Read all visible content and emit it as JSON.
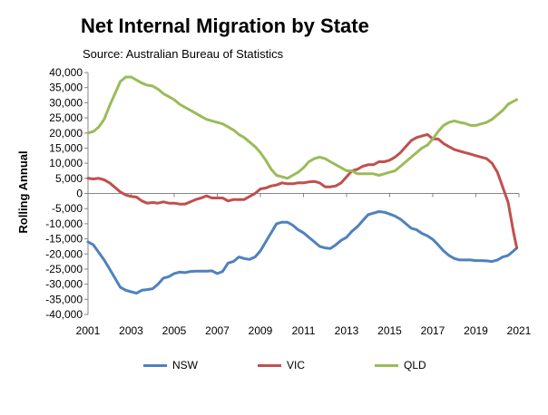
{
  "chart_data": {
    "type": "line",
    "title": "Net Internal Migration by State",
    "subtitle": "Source: Australian Bureau of Statistics",
    "ylabel": "Rolling Annual",
    "xlabel": "",
    "xlim": [
      2001,
      2021
    ],
    "ylim": [
      -40000,
      40000
    ],
    "x_ticks": [
      "2001",
      "2003",
      "2005",
      "2007",
      "2009",
      "2011",
      "2013",
      "2015",
      "2017",
      "2019",
      "2021"
    ],
    "y_ticks": [
      "40,000",
      "35,000",
      "30,000",
      "25,000",
      "20,000",
      "15,000",
      "10,000",
      "5,000",
      "0",
      "-5,000",
      "-10,000",
      "-15,000",
      "-20,000",
      "-25,000",
      "-30,000",
      "-35,000",
      "-40,000"
    ],
    "y_tick_values": [
      40000,
      35000,
      30000,
      25000,
      20000,
      15000,
      10000,
      5000,
      0,
      -5000,
      -10000,
      -15000,
      -20000,
      -25000,
      -30000,
      -35000,
      -40000
    ],
    "grid": false,
    "legend_position": "bottom",
    "series": [
      {
        "name": "NSW",
        "color": "#4F81BD",
        "x": [
          2001,
          2001.25,
          2001.5,
          2001.75,
          2002,
          2002.25,
          2002.5,
          2002.75,
          2003,
          2003.25,
          2003.5,
          2003.75,
          2004,
          2004.25,
          2004.5,
          2004.75,
          2005,
          2005.25,
          2005.5,
          2005.75,
          2006,
          2006.25,
          2006.5,
          2006.75,
          2007,
          2007.25,
          2007.5,
          2007.75,
          2008,
          2008.25,
          2008.5,
          2008.75,
          2009,
          2009.25,
          2009.5,
          2009.75,
          2010,
          2010.25,
          2010.5,
          2010.75,
          2011,
          2011.25,
          2011.5,
          2011.75,
          2012,
          2012.25,
          2012.5,
          2012.75,
          2013,
          2013.25,
          2013.5,
          2013.75,
          2014,
          2014.25,
          2014.5,
          2014.75,
          2015,
          2015.25,
          2015.5,
          2015.75,
          2016,
          2016.25,
          2016.5,
          2016.75,
          2017,
          2017.25,
          2017.5,
          2017.75,
          2018,
          2018.25,
          2018.5,
          2018.75,
          2019,
          2019.25,
          2019.5,
          2019.75,
          2020,
          2020.25,
          2020.5,
          2020.75,
          2020.9
        ],
        "y": [
          -16000,
          -17000,
          -19500,
          -22000,
          -25000,
          -28000,
          -31000,
          -32000,
          -32500,
          -33000,
          -32000,
          -31800,
          -31500,
          -30000,
          -28000,
          -27500,
          -26500,
          -26000,
          -26200,
          -25800,
          -25700,
          -25700,
          -25700,
          -25600,
          -26500,
          -25800,
          -23000,
          -22500,
          -21000,
          -21500,
          -21800,
          -21000,
          -19000,
          -16000,
          -13000,
          -10000,
          -9500,
          -9500,
          -10500,
          -12000,
          -13000,
          -14500,
          -16000,
          -17500,
          -18000,
          -18200,
          -17000,
          -15500,
          -14500,
          -12500,
          -11000,
          -9000,
          -7000,
          -6500,
          -6000,
          -6200,
          -6800,
          -7500,
          -8500,
          -10000,
          -11500,
          -12000,
          -13200,
          -14000,
          -15200,
          -17000,
          -19000,
          -20500,
          -21500,
          -22000,
          -22000,
          -22000,
          -22200,
          -22200,
          -22300,
          -22500,
          -22000,
          -21000,
          -20500,
          -19000,
          -18000
        ]
      },
      {
        "name": "VIC",
        "color": "#C0504D",
        "x": [
          2001,
          2001.25,
          2001.5,
          2001.75,
          2002,
          2002.25,
          2002.5,
          2002.75,
          2003,
          2003.25,
          2003.5,
          2003.75,
          2004,
          2004.25,
          2004.5,
          2004.75,
          2005,
          2005.25,
          2005.5,
          2005.75,
          2006,
          2006.25,
          2006.5,
          2006.75,
          2007,
          2007.25,
          2007.5,
          2007.75,
          2008,
          2008.25,
          2008.5,
          2008.75,
          2009,
          2009.25,
          2009.5,
          2009.75,
          2010,
          2010.25,
          2010.5,
          2010.75,
          2011,
          2011.25,
          2011.5,
          2011.75,
          2012,
          2012.25,
          2012.5,
          2012.75,
          2013,
          2013.25,
          2013.5,
          2013.75,
          2014,
          2014.25,
          2014.5,
          2014.75,
          2015,
          2015.25,
          2015.5,
          2015.75,
          2016,
          2016.25,
          2016.5,
          2016.75,
          2017,
          2017.25,
          2017.5,
          2017.75,
          2018,
          2018.25,
          2018.5,
          2018.75,
          2019,
          2019.25,
          2019.5,
          2019.75,
          2020,
          2020.25,
          2020.5,
          2020.6,
          2020.75,
          2020.9
        ],
        "y": [
          5000,
          4800,
          5000,
          4500,
          3500,
          2000,
          500,
          -500,
          -1000,
          -1200,
          -2500,
          -3200,
          -3000,
          -3200,
          -2800,
          -3200,
          -3200,
          -3500,
          -3500,
          -2800,
          -2000,
          -1500,
          -800,
          -1500,
          -1500,
          -1500,
          -2500,
          -2000,
          -2000,
          -2000,
          -1000,
          0,
          1500,
          1800,
          2500,
          2800,
          3500,
          3200,
          3200,
          3500,
          3500,
          3800,
          4000,
          3500,
          2200,
          2200,
          2500,
          3500,
          5500,
          7500,
          8000,
          9000,
          9500,
          9500,
          10500,
          10500,
          11000,
          12000,
          13500,
          15500,
          17500,
          18500,
          19000,
          19500,
          18000,
          18000,
          16500,
          15500,
          14500,
          14000,
          13500,
          13000,
          12500,
          12000,
          11500,
          10000,
          7000,
          2000,
          -3000,
          -7000,
          -13000,
          -18000
        ]
      },
      {
        "name": "QLD",
        "color": "#9BBB59",
        "x": [
          2001,
          2001.25,
          2001.5,
          2001.75,
          2002,
          2002.25,
          2002.5,
          2002.75,
          2003,
          2003.25,
          2003.5,
          2003.75,
          2004,
          2004.25,
          2004.5,
          2004.75,
          2005,
          2005.25,
          2005.5,
          2005.75,
          2006,
          2006.25,
          2006.5,
          2006.75,
          2007,
          2007.25,
          2007.5,
          2007.75,
          2008,
          2008.25,
          2008.5,
          2008.75,
          2009,
          2009.25,
          2009.5,
          2009.75,
          2010,
          2010.25,
          2010.5,
          2010.75,
          2011,
          2011.25,
          2011.5,
          2011.75,
          2012,
          2012.25,
          2012.5,
          2012.75,
          2013,
          2013.25,
          2013.5,
          2013.75,
          2014,
          2014.25,
          2014.5,
          2014.75,
          2015,
          2015.25,
          2015.5,
          2015.75,
          2016,
          2016.25,
          2016.5,
          2016.75,
          2017,
          2017.25,
          2017.5,
          2017.75,
          2018,
          2018.25,
          2018.5,
          2018.75,
          2019,
          2019.25,
          2019.5,
          2019.75,
          2020,
          2020.25,
          2020.5,
          2020.75,
          2020.9
        ],
        "y": [
          20000,
          20500,
          22000,
          24500,
          29000,
          33000,
          37000,
          38500,
          38500,
          37500,
          36500,
          35800,
          35500,
          34500,
          33000,
          32000,
          31000,
          29500,
          28500,
          27500,
          26500,
          25500,
          24500,
          24000,
          23500,
          23000,
          22000,
          21000,
          19500,
          18500,
          17000,
          15500,
          13500,
          11000,
          8000,
          6000,
          5500,
          5000,
          6000,
          7000,
          8500,
          10500,
          11500,
          12000,
          11500,
          10500,
          9500,
          8500,
          7500,
          7500,
          6500,
          6500,
          6500,
          6500,
          6000,
          6500,
          7000,
          7500,
          9000,
          10500,
          12000,
          13500,
          15000,
          16000,
          18000,
          20500,
          22500,
          23500,
          24000,
          23500,
          23200,
          22500,
          22500,
          23000,
          23500,
          24500,
          26000,
          27500,
          29500,
          30500,
          31000
        ]
      }
    ]
  }
}
